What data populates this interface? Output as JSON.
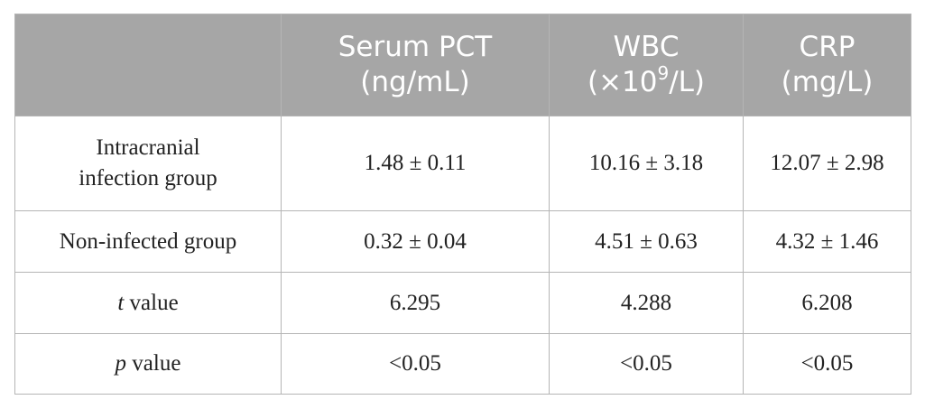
{
  "table": {
    "header": {
      "col0": "",
      "col1_line1": "Serum PCT",
      "col1_line2": "(ng/mL)",
      "col2_line1": "WBC",
      "col2_line2_pre": "(×10",
      "col2_line2_sup": "9",
      "col2_line2_post": "/L)",
      "col3_line1": "CRP",
      "col3_line2": "(mg/L)"
    },
    "rows": [
      {
        "label_line1": "Intracranial",
        "label_line2": "infection group",
        "serum_pct": "1.48 ± 0.11",
        "wbc": "10.16 ± 3.18",
        "crp": "12.07 ± 2.98"
      },
      {
        "label": "Non-infected group",
        "serum_pct": "0.32 ± 0.04",
        "wbc": "4.51 ± 0.63",
        "crp": "4.32 ± 1.46"
      },
      {
        "label_italic": "t",
        "label_rest": " value",
        "serum_pct": "6.295",
        "wbc": "4.288",
        "crp": "6.208"
      },
      {
        "label_italic": "p",
        "label_rest": " value",
        "serum_pct": "<0.05",
        "wbc": "<0.05",
        "crp": "<0.05"
      }
    ]
  }
}
